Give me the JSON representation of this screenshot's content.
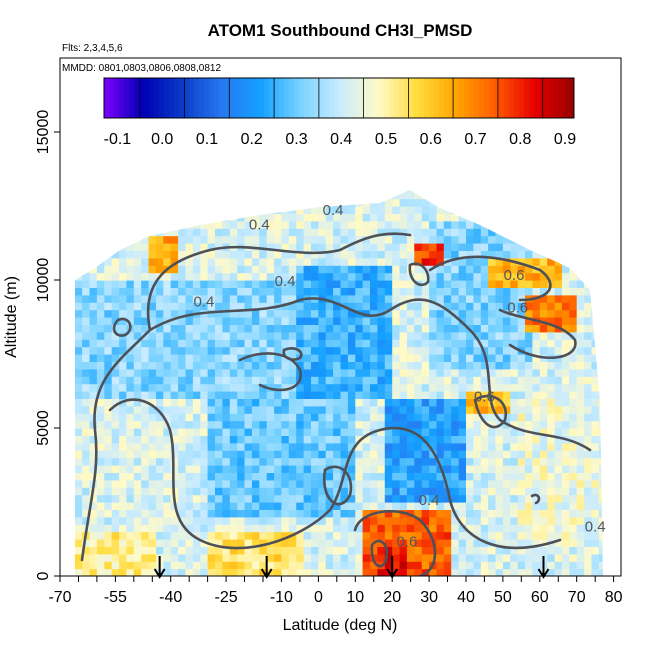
{
  "chart_data": {
    "type": "heatmap",
    "title": "ATOM1 Southbound CH3I_PMSD",
    "notes": [
      "Flts: 2,3,4,5,6",
      "MMDD: 0801,0803,0806,0808,0812"
    ],
    "xlabel": "Latitude (deg N)",
    "ylabel": "Altitude (m)",
    "xlim": [
      -70,
      82
    ],
    "ylim": [
      0,
      17500
    ],
    "x_ticks": [
      "-70",
      "-55",
      "-40",
      "-25",
      "-10",
      "0",
      "10",
      "20",
      "30",
      "40",
      "50",
      "60",
      "70",
      "80"
    ],
    "x_tick_values": [
      -70,
      -55,
      -40,
      -25,
      -10,
      0,
      10,
      20,
      30,
      40,
      50,
      60,
      70,
      80
    ],
    "y_ticks": [
      "0",
      "5000",
      "10000",
      "15000"
    ],
    "y_tick_values": [
      0,
      5000,
      10000,
      15000
    ],
    "colorbar": {
      "ticks": [
        "-0.1",
        "0.0",
        "0.1",
        "0.2",
        "0.3",
        "0.4",
        "0.5",
        "0.6",
        "0.7",
        "0.8",
        "0.9"
      ],
      "tick_values": [
        -0.1,
        0.0,
        0.1,
        0.2,
        0.3,
        0.4,
        0.5,
        0.6,
        0.7,
        0.8,
        0.9
      ],
      "range": [
        -0.13,
        0.92
      ],
      "colors": [
        "#7d00ff",
        "#0000b4",
        "#0a3cc8",
        "#2878f0",
        "#14a0ff",
        "#78d2ff",
        "#c8ebff",
        "#fffac8",
        "#ffdc3c",
        "#ffa500",
        "#ff5a00",
        "#e60000",
        "#960000"
      ]
    },
    "contour_labels": [
      {
        "text": "0.4",
        "lat": -16,
        "alt": 11700
      },
      {
        "text": "0.4",
        "lat": 4,
        "alt": 12200
      },
      {
        "text": "0.4",
        "lat": -9,
        "alt": 9800
      },
      {
        "text": "0.4",
        "lat": -31,
        "alt": 9100
      },
      {
        "text": "0.6",
        "lat": 53,
        "alt": 10000
      },
      {
        "text": "0.6",
        "lat": 54,
        "alt": 8900
      },
      {
        "text": "0.6",
        "lat": 45,
        "alt": 5900
      },
      {
        "text": "0.4",
        "lat": 30,
        "alt": 2400
      },
      {
        "text": "0.6",
        "lat": 24,
        "alt": 1000
      },
      {
        "text": "0.4",
        "lat": 75,
        "alt": 1500
      }
    ],
    "sonde_markers_lat": [
      -43,
      -14,
      20,
      61
    ],
    "regions": [
      {
        "lat": [
          -68,
          -5
        ],
        "alt": [
          6000,
          10000
        ],
        "value": 0.33
      },
      {
        "lat": [
          -5,
          20
        ],
        "alt": [
          6000,
          10500
        ],
        "value": 0.25
      },
      {
        "lat": [
          -30,
          10
        ],
        "alt": [
          2000,
          6000
        ],
        "value": 0.3
      },
      {
        "lat": [
          18,
          40
        ],
        "alt": [
          2500,
          6000
        ],
        "value": 0.22
      },
      {
        "lat": [
          30,
          58
        ],
        "alt": [
          7000,
          12000
        ],
        "value": 0.32
      },
      {
        "lat": [
          12,
          36
        ],
        "alt": [
          0,
          2200
        ],
        "value": 0.74
      },
      {
        "lat": [
          17,
          24
        ],
        "alt": [
          0,
          900
        ],
        "value": 0.82
      },
      {
        "lat": [
          46,
          66
        ],
        "alt": [
          9800,
          10800
        ],
        "value": 0.63
      },
      {
        "lat": [
          56,
          70
        ],
        "alt": [
          8300,
          9600
        ],
        "value": 0.7
      },
      {
        "lat": [
          40,
          52
        ],
        "alt": [
          5400,
          6200
        ],
        "value": 0.62
      },
      {
        "lat": [
          26,
          33
        ],
        "alt": [
          10400,
          11200
        ],
        "value": 0.78
      },
      {
        "lat": [
          -46,
          -38
        ],
        "alt": [
          10300,
          11500
        ],
        "value": 0.65
      },
      {
        "lat": [
          -66,
          -48
        ],
        "alt": [
          3000,
          6000
        ],
        "value": 0.42
      },
      {
        "lat": [
          -66,
          -45
        ],
        "alt": [
          0,
          1500
        ],
        "value": 0.52
      },
      {
        "lat": [
          -30,
          -5
        ],
        "alt": [
          0,
          1400
        ],
        "value": 0.55
      },
      {
        "lat": [
          55,
          80
        ],
        "alt": [
          1000,
          6000
        ],
        "value": 0.45
      }
    ]
  }
}
